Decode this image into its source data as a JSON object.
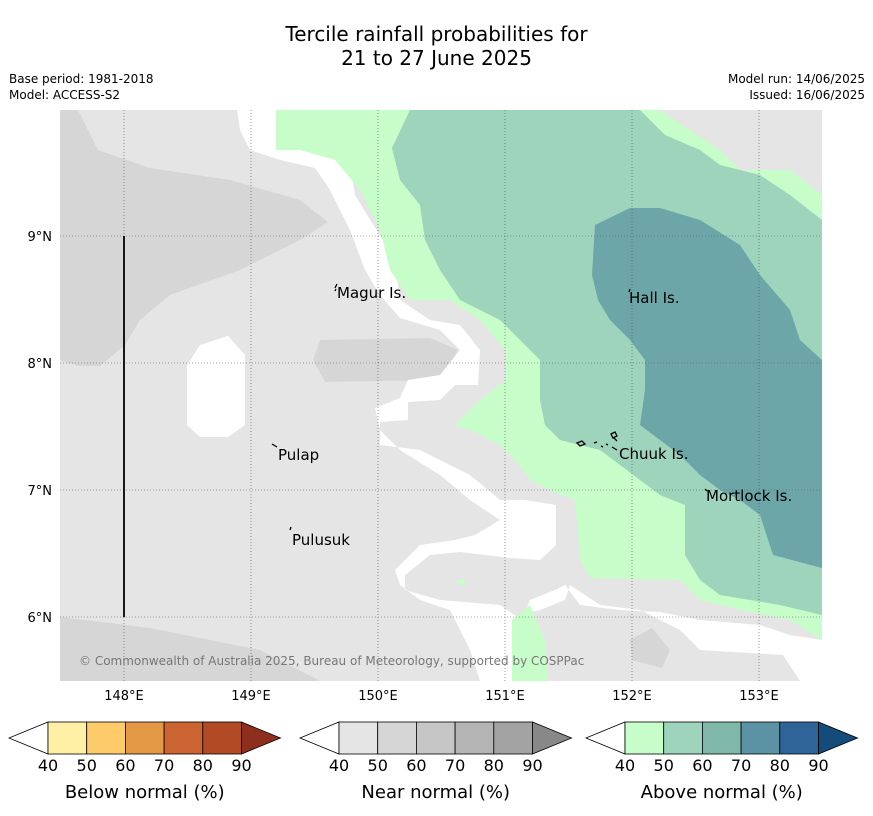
{
  "title_line1": "Tercile rainfall probabilities for",
  "title_line2": "21 to 27 June 2025",
  "base_period": "Base period: 1981-2018",
  "model": "Model: ACCESS-S2",
  "model_run": "Model run: 14/06/2025",
  "issued": "Issued: 16/06/2025",
  "map": {
    "lon_ticks": [
      "148°E",
      "149°E",
      "150°E",
      "151°E",
      "152°E",
      "153°E"
    ],
    "lat_ticks": [
      "9°N",
      "8°N",
      "7°N",
      "6°N"
    ],
    "places": [
      {
        "name": "Magur Is."
      },
      {
        "name": "Hall Is."
      },
      {
        "name": "Pulap"
      },
      {
        "name": "Chuuk Is."
      },
      {
        "name": "Mortlock Is."
      },
      {
        "name": "Pulusuk"
      }
    ],
    "copyright": "© Commonwealth of Australia 2025, Bureau of Meteorology, supported by COSPPac"
  },
  "colorbars": [
    {
      "title": "Below normal (%)",
      "ticks": [
        "40",
        "50",
        "60",
        "70",
        "80",
        "90"
      ],
      "colors": [
        "#fff0a6",
        "#fecb6a",
        "#e39846",
        "#cc6332",
        "#b24a25",
        "#8e2f1e"
      ]
    },
    {
      "title": "Near normal (%)",
      "ticks": [
        "40",
        "50",
        "60",
        "70",
        "80",
        "90"
      ],
      "colors": [
        "#e5e5e5",
        "#d6d6d6",
        "#c6c6c6",
        "#b4b4b4",
        "#a3a3a3",
        "#888888"
      ]
    },
    {
      "title": "Above normal (%)",
      "ticks": [
        "40",
        "50",
        "60",
        "70",
        "80",
        "90"
      ],
      "colors": [
        "#c7fdc8",
        "#9dd4bb",
        "#7fb8a9",
        "#5b92a4",
        "#2f6498",
        "#134b7a"
      ]
    }
  ]
}
